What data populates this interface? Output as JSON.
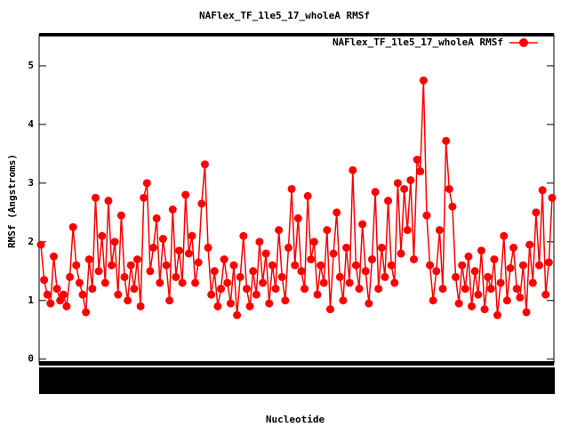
{
  "chart_data": {
    "type": "line",
    "title": "NAFlex_TF_1le5_17_wholeA RMSf",
    "xlabel": "Nucleotide",
    "ylabel": "RMSf (Angstroms)",
    "ylim": [
      -0.08,
      5.53
    ],
    "yticks": [
      0,
      1,
      2,
      3,
      4,
      5
    ],
    "legend": "top-right",
    "categories": [
      null,
      null,
      null,
      null,
      null,
      null,
      null,
      null,
      null,
      null,
      null,
      null,
      null,
      null,
      null,
      null,
      null,
      null,
      null,
      null,
      null,
      null,
      null,
      null,
      null,
      null,
      null,
      null,
      null,
      null,
      null,
      null,
      null,
      null,
      null,
      null,
      null,
      null,
      null,
      null,
      null,
      null,
      null,
      null,
      null,
      null,
      null,
      null,
      null,
      null,
      null,
      null,
      null,
      null,
      null,
      null,
      null,
      null,
      null,
      null,
      null,
      null,
      null,
      null,
      null,
      null,
      null,
      null,
      null,
      null,
      null,
      null,
      null,
      null,
      null,
      null,
      null,
      null,
      null,
      null,
      null,
      null,
      null,
      null,
      null,
      null,
      null,
      null,
      null,
      null,
      null,
      null,
      null,
      null,
      null,
      null,
      null,
      null,
      null,
      null,
      null,
      null,
      null,
      null,
      null,
      null,
      null,
      null,
      null,
      null,
      null,
      null,
      null,
      null,
      null,
      null,
      null,
      null,
      null,
      null,
      null,
      null,
      null,
      null,
      null,
      null,
      null,
      null,
      null,
      null,
      null,
      null,
      null,
      null,
      null,
      null,
      null,
      null,
      null,
      null,
      null,
      null,
      null,
      null,
      null,
      null,
      null,
      null,
      null,
      null,
      null,
      null,
      null,
      null,
      null,
      null,
      null,
      null,
      null,
      null
    ],
    "series": [
      {
        "name": "NAFlex_TF_1le5_17_wholeA RMSf",
        "color": "#ff0000",
        "values": [
          1.95,
          1.35,
          1.1,
          0.95,
          1.75,
          1.2,
          1.0,
          1.1,
          0.9,
          1.4,
          2.25,
          1.6,
          1.3,
          1.1,
          0.8,
          1.7,
          1.2,
          2.75,
          1.5,
          2.1,
          1.3,
          2.7,
          1.6,
          2.0,
          1.1,
          2.45,
          1.4,
          1.0,
          1.6,
          1.2,
          1.7,
          0.9,
          2.75,
          3.0,
          1.5,
          1.9,
          2.4,
          1.3,
          2.05,
          1.6,
          1.0,
          2.55,
          1.4,
          1.85,
          1.3,
          2.8,
          1.8,
          2.1,
          1.3,
          1.65,
          2.65,
          3.32,
          1.9,
          1.1,
          1.5,
          0.9,
          1.2,
          1.7,
          1.3,
          0.95,
          1.6,
          0.75,
          1.4,
          2.1,
          1.2,
          0.9,
          1.5,
          1.1,
          2.0,
          1.3,
          1.8,
          0.95,
          1.6,
          1.2,
          2.2,
          1.4,
          1.0,
          1.9,
          2.9,
          1.6,
          2.4,
          1.5,
          1.2,
          2.78,
          1.7,
          2.0,
          1.1,
          1.6,
          1.3,
          2.2,
          0.85,
          1.8,
          2.5,
          1.4,
          1.0,
          1.9,
          1.3,
          3.22,
          1.6,
          1.2,
          2.3,
          1.5,
          0.95,
          1.7,
          2.85,
          1.2,
          1.9,
          1.4,
          2.7,
          1.6,
          1.3,
          3.0,
          1.8,
          2.9,
          2.2,
          3.05,
          1.7,
          3.4,
          3.2,
          4.75,
          2.45,
          1.6,
          1.0,
          1.5,
          2.2,
          1.2,
          3.72,
          2.9,
          2.6,
          1.4,
          0.95,
          1.6,
          1.2,
          1.75,
          0.9,
          1.5,
          1.1,
          1.85,
          0.85,
          1.4,
          1.2,
          1.7,
          0.75,
          1.3,
          2.1,
          1.0,
          1.55,
          1.9,
          1.2,
          1.05,
          1.6,
          0.8,
          1.95,
          1.3,
          2.5,
          1.6,
          2.88,
          1.1,
          1.65,
          2.75
        ]
      }
    ]
  }
}
